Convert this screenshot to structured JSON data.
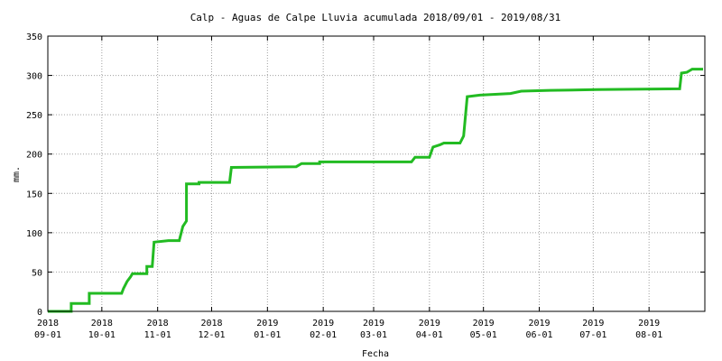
{
  "chart_data": {
    "type": "line",
    "title": "Calp - Aguas de Calpe Lluvia acumulada 2018/09/01 - 2019/08/31",
    "xlabel": "Fecha",
    "ylabel": "mm.",
    "xlim": [
      "2018-09-01",
      "2019-08-31"
    ],
    "ylim": [
      0,
      350
    ],
    "grid": true,
    "line_color": "#22bb22",
    "yticks": [
      0,
      50,
      100,
      150,
      200,
      250,
      300,
      350
    ],
    "xticks": [
      {
        "date": "2018-09-01",
        "year": "2018",
        "md": "09-01"
      },
      {
        "date": "2018-10-01",
        "year": "2018",
        "md": "10-01"
      },
      {
        "date": "2018-11-01",
        "year": "2018",
        "md": "11-01"
      },
      {
        "date": "2018-12-01",
        "year": "2018",
        "md": "12-01"
      },
      {
        "date": "2019-01-01",
        "year": "2019",
        "md": "01-01"
      },
      {
        "date": "2019-02-01",
        "year": "2019",
        "md": "02-01"
      },
      {
        "date": "2019-03-01",
        "year": "2019",
        "md": "03-01"
      },
      {
        "date": "2019-04-01",
        "year": "2019",
        "md": "04-01"
      },
      {
        "date": "2019-05-01",
        "year": "2019",
        "md": "05-01"
      },
      {
        "date": "2019-06-01",
        "year": "2019",
        "md": "06-01"
      },
      {
        "date": "2019-07-01",
        "year": "2019",
        "md": "07-01"
      },
      {
        "date": "2019-08-01",
        "year": "2019",
        "md": "08-01"
      }
    ],
    "series": [
      {
        "points": [
          [
            "2018-09-01",
            0
          ],
          [
            "2018-09-14",
            0
          ],
          [
            "2018-09-14",
            10
          ],
          [
            "2018-09-24",
            10
          ],
          [
            "2018-09-24",
            23
          ],
          [
            "2018-10-12",
            23
          ],
          [
            "2018-10-13",
            29
          ],
          [
            "2018-10-15",
            38
          ],
          [
            "2018-10-17",
            44
          ],
          [
            "2018-10-18",
            48
          ],
          [
            "2018-10-26",
            48
          ],
          [
            "2018-10-26",
            57
          ],
          [
            "2018-10-29",
            57
          ],
          [
            "2018-10-30",
            88
          ],
          [
            "2018-11-07",
            90
          ],
          [
            "2018-11-13",
            90
          ],
          [
            "2018-11-15",
            108
          ],
          [
            "2018-11-17",
            115
          ],
          [
            "2018-11-17",
            162
          ],
          [
            "2018-11-24",
            162
          ],
          [
            "2018-11-24",
            164
          ],
          [
            "2018-12-11",
            164
          ],
          [
            "2018-12-12",
            183
          ],
          [
            "2019-01-17",
            184
          ],
          [
            "2019-01-20",
            188
          ],
          [
            "2019-01-30",
            188
          ],
          [
            "2019-01-30",
            190
          ],
          [
            "2019-03-22",
            190
          ],
          [
            "2019-03-24",
            196
          ],
          [
            "2019-04-01",
            196
          ],
          [
            "2019-04-03",
            209
          ],
          [
            "2019-04-07",
            212
          ],
          [
            "2019-04-09",
            214
          ],
          [
            "2019-04-18",
            214
          ],
          [
            "2019-04-20",
            223
          ],
          [
            "2019-04-22",
            273
          ],
          [
            "2019-04-29",
            275
          ],
          [
            "2019-05-16",
            277
          ],
          [
            "2019-05-22",
            280
          ],
          [
            "2019-06-07",
            281
          ],
          [
            "2019-07-03",
            282
          ],
          [
            "2019-08-18",
            283
          ],
          [
            "2019-08-19",
            303
          ],
          [
            "2019-08-22",
            304
          ],
          [
            "2019-08-25",
            308
          ],
          [
            "2019-08-31",
            308
          ]
        ]
      }
    ]
  }
}
